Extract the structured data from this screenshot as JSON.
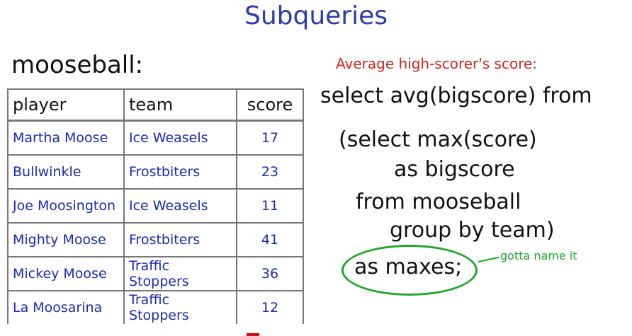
{
  "title": "Subqueries",
  "table": {
    "name": "mooseball:",
    "headers": [
      "player",
      "team",
      "score"
    ],
    "rows": [
      [
        "Martha Moose",
        "Ice Weasels",
        "17"
      ],
      [
        "Bullwinkle",
        "Frostbiters",
        "23"
      ],
      [
        "Joe Moosington",
        "Ice Weasels",
        "11"
      ],
      [
        "Mighty Moose",
        "Frostbiters",
        "41"
      ],
      [
        "Mickey Moose",
        "Traffic Stoppers",
        "36"
      ],
      [
        "La Moosarina",
        "Traffic Stoppers",
        "12"
      ]
    ]
  },
  "query": {
    "note": "Average high-scorer's score:",
    "lines": [
      "select avg(bigscore) from",
      "(select max(score)",
      "as bigscore",
      "from mooseball",
      "group by team)",
      "as maxes;"
    ],
    "annotation": "gotta name it"
  },
  "colors": {
    "title": "#2b3bb0",
    "cell_text": "#1a2ab8",
    "note": "#d8231c",
    "annotation": "#1fa82a"
  }
}
